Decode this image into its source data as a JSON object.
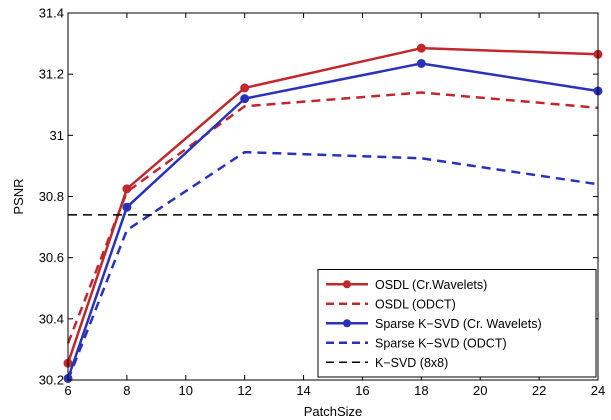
{
  "chart_data": {
    "type": "line",
    "title": "",
    "xlabel": "PatchSize",
    "ylabel": "PSNR",
    "xlim": [
      6,
      24
    ],
    "ylim": [
      30.2,
      31.4
    ],
    "xticks": [
      6,
      8,
      10,
      12,
      14,
      16,
      18,
      20,
      22,
      24
    ],
    "xtick_labels": [
      "6",
      "8",
      "10",
      "12",
      "14",
      "16",
      "18",
      "20",
      "22",
      "24"
    ],
    "yticks": [
      30.2,
      30.4,
      30.6,
      30.8,
      31,
      31.2,
      31.4
    ],
    "ytick_labels": [
      "30.2",
      "30.4",
      "30.6",
      "30.8",
      "31",
      "31.2",
      "31.4"
    ],
    "grid": false,
    "legend_position": "bottom-right",
    "series": [
      {
        "name": "OSDL (Cr.Wavelets)",
        "color": "#c0282d",
        "line_style": "solid",
        "marker": "circle",
        "x": [
          6,
          8,
          12,
          18,
          24
        ],
        "y": [
          30.255,
          30.825,
          31.155,
          31.285,
          31.265
        ]
      },
      {
        "name": "OSDL (ODCT)",
        "color": "#c0282d",
        "line_style": "dashed",
        "marker": "none",
        "x": [
          6,
          8,
          12,
          18,
          24
        ],
        "y": [
          30.32,
          30.815,
          31.095,
          31.14,
          31.09
        ]
      },
      {
        "name": "Sparse K−SVD (Cr. Wavelets)",
        "color": "#2a33b8",
        "line_style": "solid",
        "marker": "circle",
        "x": [
          6,
          8,
          12,
          18,
          24
        ],
        "y": [
          30.205,
          30.765,
          31.12,
          31.235,
          31.145
        ]
      },
      {
        "name": "Sparse K−SVD (ODCT)",
        "color": "#2a33b8",
        "line_style": "dashed",
        "marker": "none",
        "x": [
          6,
          8,
          12,
          18,
          24
        ],
        "y": [
          30.2,
          30.69,
          30.945,
          30.925,
          30.84
        ]
      },
      {
        "name": "K−SVD (8x8)",
        "color": "#000000",
        "line_style": "dashed",
        "marker": "none",
        "x": [
          6,
          24
        ],
        "y": [
          30.74,
          30.74
        ]
      }
    ]
  }
}
